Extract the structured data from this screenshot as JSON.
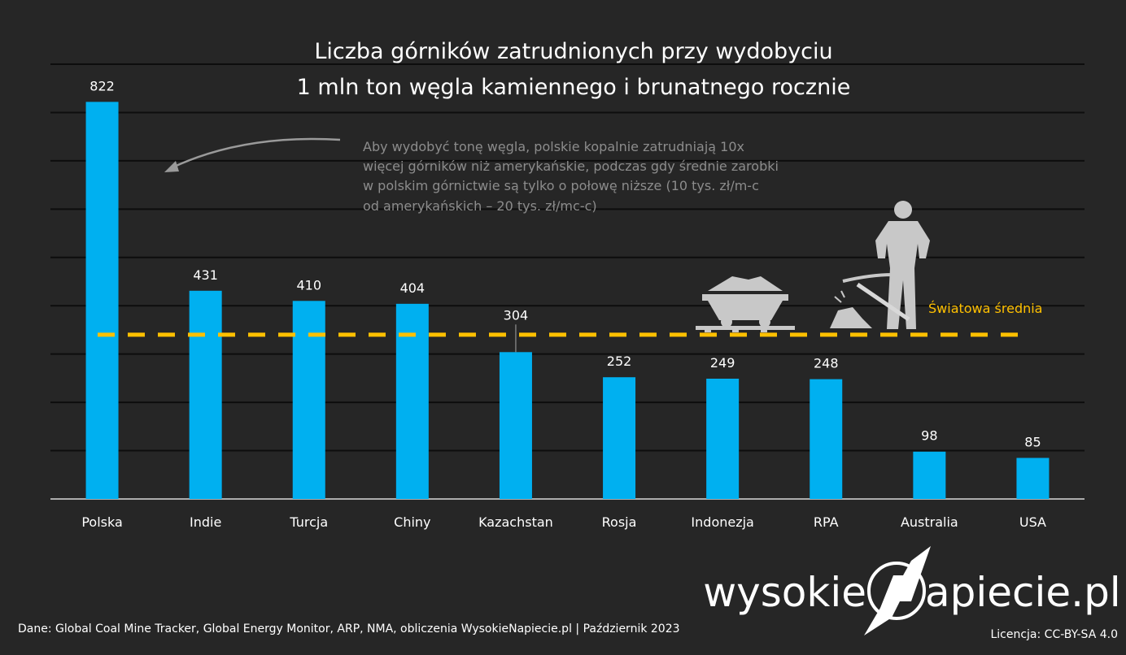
{
  "chart_data": {
    "type": "bar",
    "title_lines": [
      "Liczba górników zatrudnionych przy wydobyciu",
      "1 mln ton węgla kamiennego i brunatnego rocznie"
    ],
    "categories": [
      "Polska",
      "Indie",
      "Turcja",
      "Chiny",
      "Kazachstan",
      "Rosja",
      "Indonezja",
      "RPA",
      "Australia",
      "USA"
    ],
    "values": [
      822,
      431,
      410,
      404,
      304,
      252,
      249,
      248,
      98,
      85
    ],
    "ylim": [
      0,
      900
    ],
    "grid": true,
    "grid_step": 100,
    "reference_line": {
      "label": "Światowa średnia",
      "value": 340,
      "color": "#ffc000",
      "style": "dashed"
    },
    "annotation_lines": [
      "Aby wydobyć tonę węgla, polskie kopalnie zatrudniają 10x",
      "więcej górników niż amerykańskie, podczas gdy średnie zarobki",
      "w polskim górnictwie są tylko o połowę niższe (10 tys. zł/m-c",
      "od amerykańskich – 20 tys. zł/mc-c)"
    ],
    "bar_color": "#00b0f0"
  },
  "footer": {
    "source": "Dane: Global Coal Mine Tracker, Global Energy Monitor, ARP, NMA, obliczenia WysokieNapiecie.pl |  Październik 2023",
    "license": "Licencja: CC-BY-SA 4.0",
    "logo_left": "wysokie",
    "logo_right": "apiecie.pl"
  },
  "icons": [
    "mine-cart-icon",
    "miner-with-pickaxe-icon",
    "curved-arrow-icon"
  ]
}
